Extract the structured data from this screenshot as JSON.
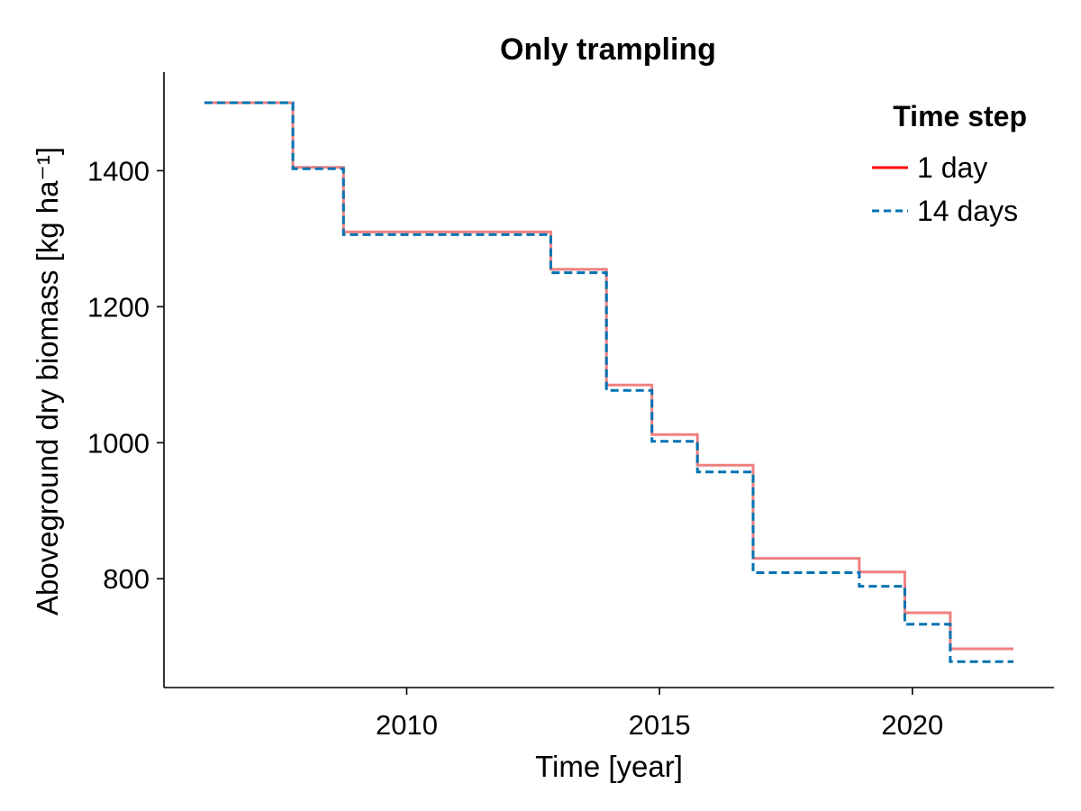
{
  "chart_data": {
    "type": "line",
    "title": "Only trampling",
    "xlabel": "Time [year]",
    "ylabel": "Aboveground dry biomass [kg ha⁻¹]",
    "xlim": [
      2005.2,
      2022.8
    ],
    "ylim": [
      640,
      1545
    ],
    "xticks": [
      2010,
      2015,
      2020
    ],
    "yticks": [
      800,
      1000,
      1200,
      1400
    ],
    "grid": false,
    "legend": {
      "title": "Time step",
      "position": "top-right"
    },
    "series": [
      {
        "name": "1 day",
        "style": "solid",
        "color": "#f08080",
        "legend_color": "#ff0000",
        "x": [
          2006.0,
          2007.75,
          2007.75,
          2008.75,
          2008.75,
          2012.85,
          2012.85,
          2013.95,
          2013.95,
          2014.85,
          2014.85,
          2015.75,
          2015.75,
          2016.85,
          2016.85,
          2018.95,
          2018.95,
          2019.85,
          2019.85,
          2020.75,
          2020.75,
          2022.0
        ],
        "y": [
          1500,
          1500,
          1405,
          1405,
          1310,
          1310,
          1255,
          1255,
          1085,
          1085,
          1012,
          1012,
          967,
          967,
          830,
          830,
          810,
          810,
          750,
          750,
          697,
          697
        ]
      },
      {
        "name": "14 days",
        "style": "dashed",
        "color": "#0072b2",
        "legend_color": "#0072b2",
        "x": [
          2006.0,
          2007.75,
          2007.75,
          2008.75,
          2008.75,
          2012.85,
          2012.85,
          2013.95,
          2013.95,
          2014.85,
          2014.85,
          2015.75,
          2015.75,
          2016.85,
          2016.85,
          2018.95,
          2018.95,
          2019.85,
          2019.85,
          2020.75,
          2020.75,
          2022.0
        ],
        "y": [
          1500,
          1500,
          1403,
          1403,
          1306,
          1306,
          1250,
          1250,
          1077,
          1077,
          1002,
          1002,
          957,
          957,
          809,
          809,
          789,
          789,
          733,
          733,
          678,
          678
        ]
      }
    ]
  }
}
